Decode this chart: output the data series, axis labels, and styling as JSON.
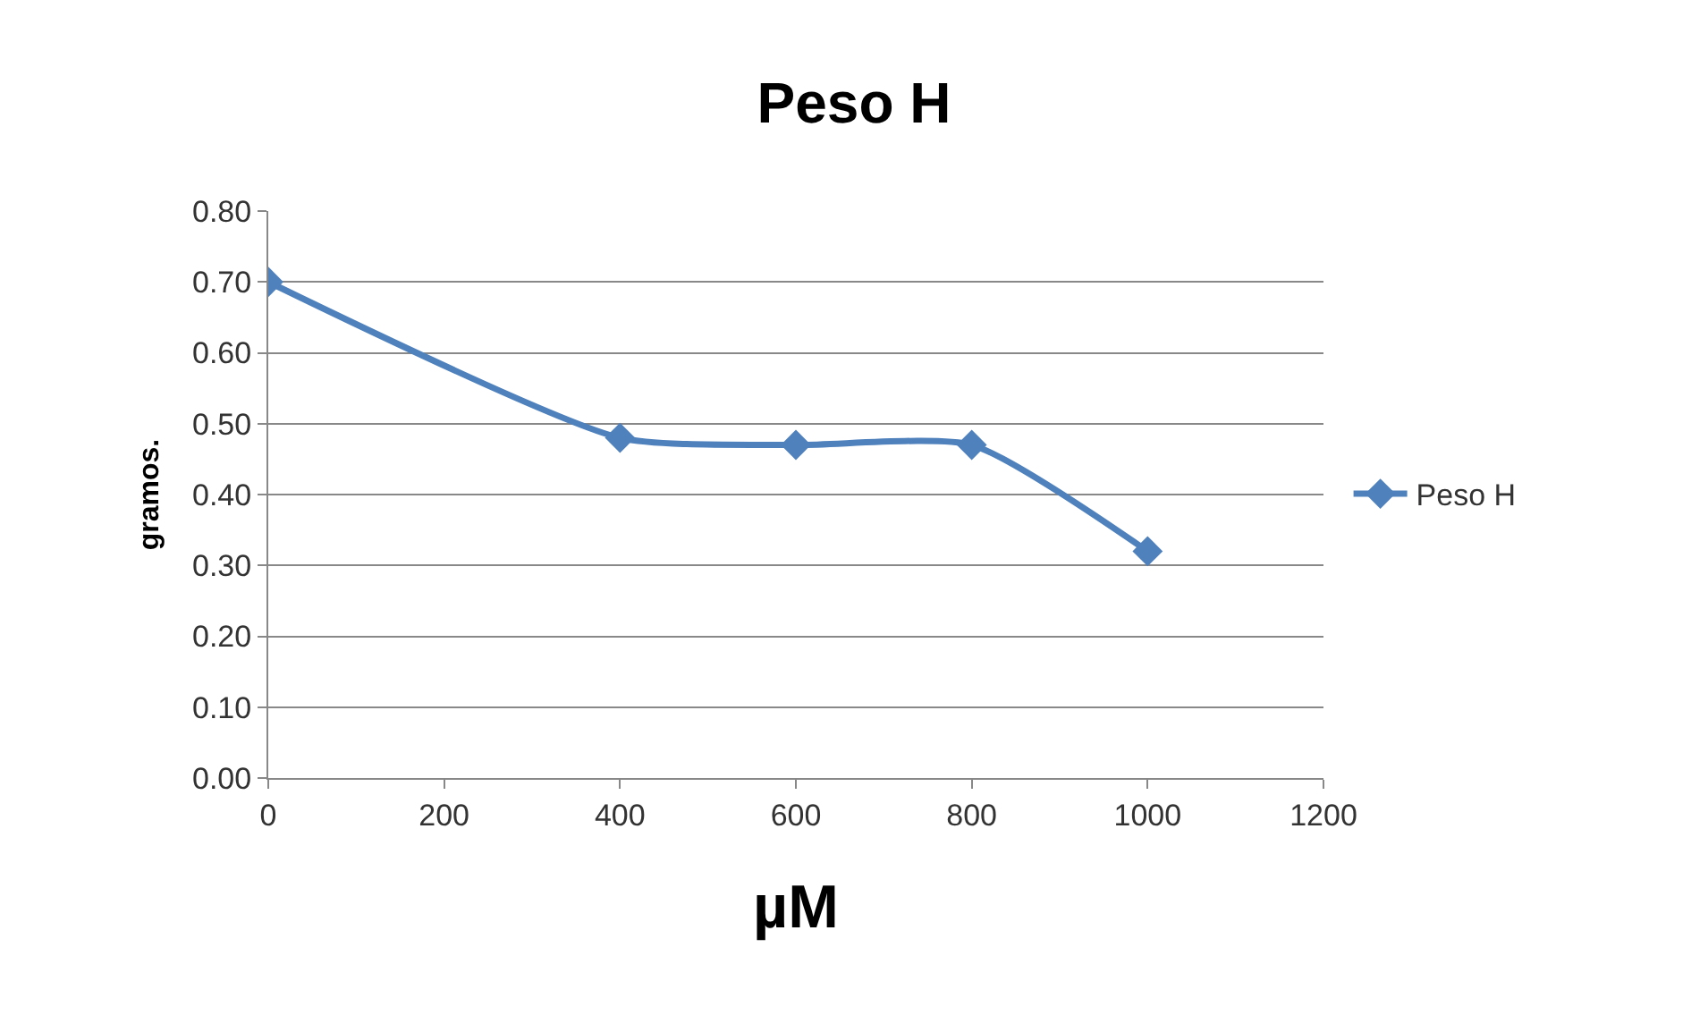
{
  "chart_data": {
    "type": "line",
    "title": "Peso H",
    "xlabel": "µM",
    "ylabel": "gramos.",
    "x": [
      0,
      400,
      600,
      800,
      1000
    ],
    "series": [
      {
        "name": "Peso H",
        "color": "#4f81bd",
        "values": [
          0.7,
          0.48,
          0.47,
          0.47,
          0.32
        ]
      }
    ],
    "xlim": [
      0,
      1200
    ],
    "xticks": [
      0,
      200,
      400,
      600,
      800,
      1000,
      1200
    ],
    "ylim": [
      0,
      0.8
    ],
    "yticks": [
      {
        "value": 0,
        "label": "0.00"
      },
      {
        "value": 0.1,
        "label": "0.10"
      },
      {
        "value": 0.2,
        "label": "0.20"
      },
      {
        "value": 0.3,
        "label": "0.30"
      },
      {
        "value": 0.4,
        "label": "0.40"
      },
      {
        "value": 0.5,
        "label": "0.50"
      },
      {
        "value": 0.6,
        "label": "0.60"
      },
      {
        "value": 0.7,
        "label": "0.70"
      },
      {
        "value": 0.8,
        "label": "0.80"
      }
    ],
    "grid": "y",
    "legend": "right",
    "marker": "diamond",
    "line_style": "solid"
  }
}
